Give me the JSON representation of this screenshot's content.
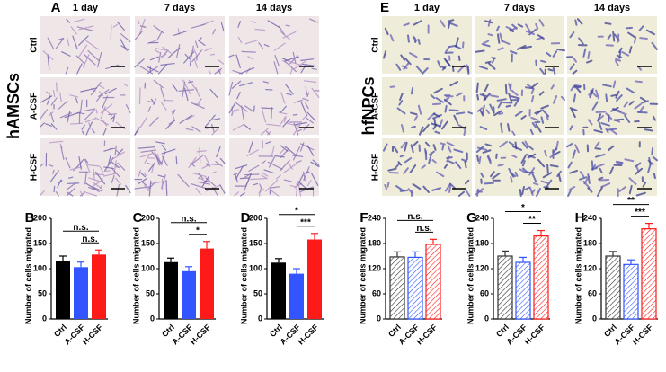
{
  "image_panels": [
    {
      "label": "A",
      "cell_type": "hAMSCs",
      "columns": [
        "1 day",
        "7 days",
        "14 days"
      ],
      "rows": [
        "Ctrl",
        "A-CSF",
        "H-CSF"
      ]
    },
    {
      "label": "E",
      "cell_type": "hfNPCs",
      "columns": [
        "1 day",
        "7 days",
        "14 days"
      ],
      "rows": [
        "Ctrl",
        "A-CSF",
        "H-CSF"
      ]
    }
  ],
  "chart_data": [
    {
      "type": "bar",
      "label": "B",
      "y_label": "Number of cells migrated",
      "categories": [
        "Ctrl",
        "A-CSF",
        "H-CSF"
      ],
      "values": [
        115,
        103,
        128
      ],
      "errors": [
        10,
        10,
        9
      ],
      "colors": [
        "#000000",
        "#3355ff",
        "#ff1a1a"
      ],
      "hatched": false,
      "ylim": [
        0,
        200
      ],
      "yticks": [
        0,
        50,
        100,
        150,
        200
      ],
      "significance": [
        "n.s.",
        "n.s."
      ]
    },
    {
      "type": "bar",
      "label": "C",
      "y_label": "Number of cells migrated",
      "categories": [
        "Ctrl",
        "A-CSF",
        "H-CSF"
      ],
      "values": [
        113,
        95,
        140
      ],
      "errors": [
        8,
        9,
        14
      ],
      "colors": [
        "#000000",
        "#3355ff",
        "#ff1a1a"
      ],
      "hatched": false,
      "ylim": [
        0,
        200
      ],
      "yticks": [
        0,
        50,
        100,
        150,
        200
      ],
      "significance": [
        "n.s.",
        "*"
      ]
    },
    {
      "type": "bar",
      "label": "D",
      "y_label": "Number of cells migrated",
      "categories": [
        "Ctrl",
        "A-CSF",
        "H-CSF"
      ],
      "values": [
        112,
        90,
        158
      ],
      "errors": [
        8,
        10,
        12
      ],
      "colors": [
        "#000000",
        "#3355ff",
        "#ff1a1a"
      ],
      "hatched": false,
      "ylim": [
        0,
        200
      ],
      "yticks": [
        0,
        50,
        100,
        150,
        200
      ],
      "significance": [
        "*",
        "***"
      ]
    },
    {
      "type": "bar",
      "label": "F",
      "y_label": "Number of cells migrated",
      "categories": [
        "Ctrl",
        "A-CSF",
        "H-CSF"
      ],
      "values": [
        148,
        147,
        178
      ],
      "errors": [
        12,
        13,
        12
      ],
      "colors": [
        "#333333",
        "#3355ff",
        "#ff1a1a"
      ],
      "hatched": true,
      "ylim": [
        0,
        240
      ],
      "yticks": [
        0,
        60,
        120,
        180,
        240
      ],
      "significance": [
        "n.s.",
        "n.s."
      ]
    },
    {
      "type": "bar",
      "label": "G",
      "y_label": "Number of cells migrated",
      "categories": [
        "Ctrl",
        "A-CSF",
        "H-CSF"
      ],
      "values": [
        150,
        135,
        198
      ],
      "errors": [
        12,
        12,
        13
      ],
      "colors": [
        "#333333",
        "#3355ff",
        "#ff1a1a"
      ],
      "hatched": true,
      "ylim": [
        0,
        240
      ],
      "yticks": [
        0,
        60,
        120,
        180,
        240
      ],
      "significance": [
        "*",
        "**"
      ]
    },
    {
      "type": "bar",
      "label": "H",
      "y_label": "Number of cells migrated",
      "categories": [
        "Ctrl",
        "A-CSF",
        "H-CSF"
      ],
      "values": [
        150,
        130,
        215
      ],
      "errors": [
        11,
        11,
        13
      ],
      "colors": [
        "#333333",
        "#3355ff",
        "#ff1a1a"
      ],
      "hatched": true,
      "ylim": [
        0,
        240
      ],
      "yticks": [
        0,
        60,
        120,
        180,
        240
      ],
      "significance": [
        "**",
        "***"
      ]
    }
  ]
}
